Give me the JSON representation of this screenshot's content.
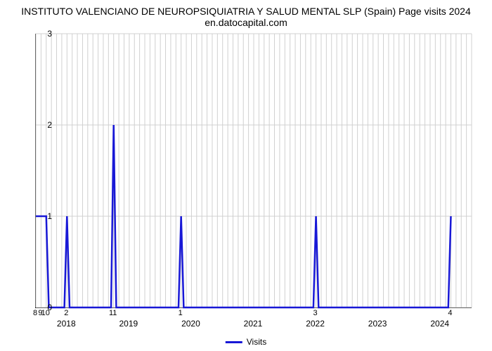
{
  "chart": {
    "type": "line",
    "title": "INSTITUTO VALENCIANO DE NEUROPSIQUIATRIA Y SALUD MENTAL SLP (Spain) Page visits 2024 en.datocapital.com",
    "title_fontsize": 14,
    "background_color": "#ffffff",
    "grid_color": "#d0d0d0",
    "axis_color": "#000000",
    "line_color": "#1818d6",
    "line_width": 2.5,
    "x_domain": [
      0,
      84
    ],
    "y_domain": [
      0,
      3
    ],
    "y_ticks": [
      0,
      1,
      2,
      3
    ],
    "x_major_gridlines": [
      0,
      1,
      2,
      3,
      4,
      5,
      6,
      7,
      8,
      9,
      10,
      11,
      12,
      13,
      14,
      15,
      16,
      17,
      18,
      19,
      20,
      21,
      22,
      23,
      24,
      25,
      26,
      27,
      28,
      29,
      30,
      31,
      32,
      33,
      34,
      35,
      36,
      37,
      38,
      39,
      40,
      41,
      42,
      43,
      44,
      45,
      46,
      47,
      48,
      49,
      50,
      51,
      52,
      53,
      54,
      55,
      56,
      57,
      58,
      59,
      60,
      61,
      62,
      63,
      64,
      65,
      66,
      67,
      68,
      69,
      70,
      71,
      72,
      73,
      74,
      75,
      76,
      77,
      78,
      79,
      80,
      81,
      82,
      83,
      84
    ],
    "x_tick_labels": [
      {
        "x": 0,
        "text": "8"
      },
      {
        "x": 1,
        "text": "9"
      },
      {
        "x": 2,
        "text": "10"
      },
      {
        "x": 6,
        "text": "2"
      },
      {
        "x": 15,
        "text": "11"
      },
      {
        "x": 28,
        "text": "1"
      },
      {
        "x": 54,
        "text": "3"
      },
      {
        "x": 80,
        "text": "4"
      }
    ],
    "x_year_labels": [
      {
        "x": 6,
        "text": "2018"
      },
      {
        "x": 18,
        "text": "2019"
      },
      {
        "x": 30,
        "text": "2020"
      },
      {
        "x": 42,
        "text": "2021"
      },
      {
        "x": 54,
        "text": "2022"
      },
      {
        "x": 66,
        "text": "2023"
      },
      {
        "x": 78,
        "text": "2024"
      }
    ],
    "series": {
      "name": "Visits",
      "points": [
        {
          "x": 0,
          "y": 1
        },
        {
          "x": 2,
          "y": 1
        },
        {
          "x": 2.5,
          "y": 0
        },
        {
          "x": 5.5,
          "y": 0
        },
        {
          "x": 6,
          "y": 1
        },
        {
          "x": 6.5,
          "y": 0
        },
        {
          "x": 14.5,
          "y": 0
        },
        {
          "x": 15,
          "y": 2
        },
        {
          "x": 15.5,
          "y": 0
        },
        {
          "x": 27.5,
          "y": 0
        },
        {
          "x": 28,
          "y": 1
        },
        {
          "x": 28.5,
          "y": 0
        },
        {
          "x": 53.5,
          "y": 0
        },
        {
          "x": 54,
          "y": 1
        },
        {
          "x": 54.5,
          "y": 0
        },
        {
          "x": 79.5,
          "y": 0
        },
        {
          "x": 80,
          "y": 1
        }
      ]
    },
    "legend_label": "Visits"
  }
}
